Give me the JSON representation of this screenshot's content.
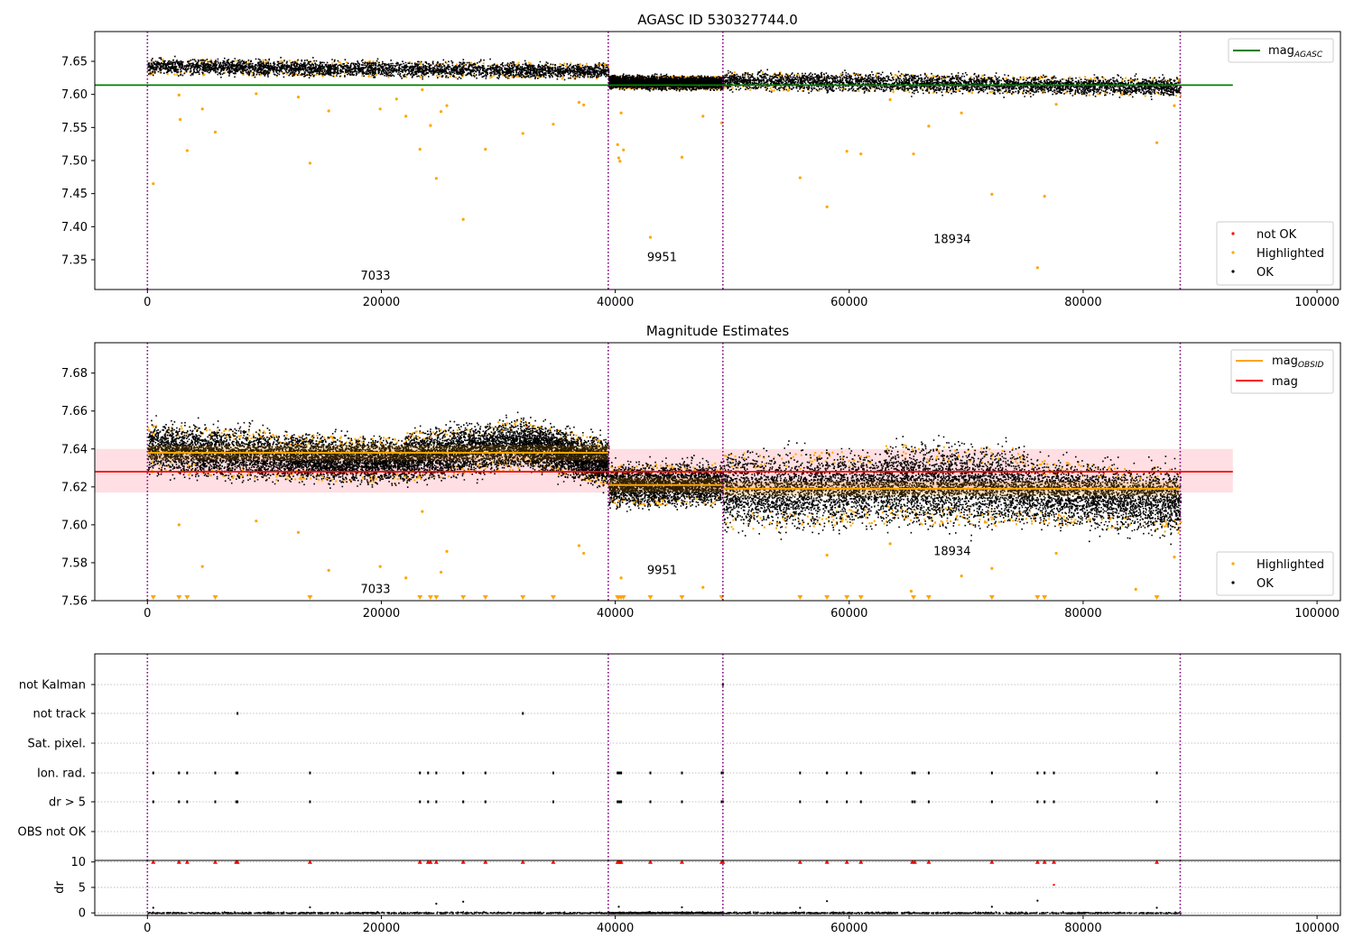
{
  "figure": {
    "title_top": "AGASC ID 530327744.0",
    "title_middle": "Magnitude Estimates"
  },
  "colors": {
    "ok": "#000000",
    "highlighted": "#ffa500",
    "not_ok": "#ff0000",
    "agasc_line": "#008000",
    "mag_line": "#ff0000",
    "mag_band": "#ffc0c8",
    "obsid_line": "#ffa500",
    "obs_boundary": "#800080",
    "grid": "#b0b0b0"
  },
  "chart_data": [
    {
      "id": "top",
      "type": "scatter",
      "title": "AGASC ID 530327744.0",
      "xlim": [
        -4500,
        102000
      ],
      "ylim": [
        7.305,
        7.695
      ],
      "x_ticks": [
        0,
        20000,
        40000,
        60000,
        80000,
        100000
      ],
      "y_ticks": [
        7.35,
        7.4,
        7.45,
        7.5,
        7.55,
        7.6,
        7.65
      ],
      "y_tick_labels": [
        "7.35",
        "7.40",
        "7.45",
        "7.50",
        "7.55",
        "7.60",
        "7.65"
      ],
      "obs_boundaries": [
        0,
        39400,
        49200,
        88300
      ],
      "obs_labels": [
        {
          "text": "7033",
          "x": 19500,
          "y": 7.32
        },
        {
          "text": "9951",
          "x": 44000,
          "y": 7.348
        },
        {
          "text": "18934",
          "x": 68800,
          "y": 7.375
        }
      ],
      "mag_agasc": 7.614,
      "mag_agasc_xrange": [
        -4500,
        92800
      ],
      "ok_segments": [
        {
          "x0": 0,
          "x1": 39400,
          "y0": 7.643,
          "y1": 7.636,
          "spread": 0.012
        },
        {
          "x0": 39400,
          "x1": 49200,
          "y0": 7.62,
          "y1": 7.618,
          "spread": 0.01
        },
        {
          "x0": 49200,
          "x1": 88300,
          "y0": 7.622,
          "y1": 7.612,
          "spread": 0.014
        }
      ],
      "highlighted_outliers": [
        [
          500,
          7.465
        ],
        [
          2700,
          7.599
        ],
        [
          2800,
          7.562
        ],
        [
          3400,
          7.515
        ],
        [
          4700,
          7.578
        ],
        [
          5800,
          7.543
        ],
        [
          9300,
          7.601
        ],
        [
          12900,
          7.596
        ],
        [
          13900,
          7.496
        ],
        [
          15500,
          7.575
        ],
        [
          19900,
          7.578
        ],
        [
          21300,
          7.593
        ],
        [
          22100,
          7.567
        ],
        [
          23300,
          7.517
        ],
        [
          23500,
          7.607
        ],
        [
          24200,
          7.553
        ],
        [
          24700,
          7.473
        ],
        [
          25100,
          7.574
        ],
        [
          25600,
          7.583
        ],
        [
          27000,
          7.411
        ],
        [
          28900,
          7.517
        ],
        [
          32100,
          7.541
        ],
        [
          34700,
          7.555
        ],
        [
          36900,
          7.588
        ],
        [
          37300,
          7.584
        ],
        [
          40200,
          7.524
        ],
        [
          40300,
          7.504
        ],
        [
          40400,
          7.499
        ],
        [
          40500,
          7.572
        ],
        [
          40700,
          7.516
        ],
        [
          43000,
          7.384
        ],
        [
          45700,
          7.505
        ],
        [
          47500,
          7.567
        ],
        [
          49100,
          7.557
        ],
        [
          55800,
          7.474
        ],
        [
          58100,
          7.43
        ],
        [
          59800,
          7.514
        ],
        [
          61000,
          7.51
        ],
        [
          65500,
          7.51
        ],
        [
          66800,
          7.552
        ],
        [
          72200,
          7.449
        ],
        [
          76100,
          7.338
        ],
        [
          76700,
          7.446
        ],
        [
          77700,
          7.585
        ],
        [
          86300,
          7.527
        ],
        [
          87800,
          7.583
        ],
        [
          63500,
          7.592
        ],
        [
          69600,
          7.572
        ]
      ],
      "legend": [
        "not OK",
        "Highlighted",
        "OK"
      ],
      "legend_line": "mag_AGASC"
    },
    {
      "id": "middle",
      "type": "scatter",
      "title": "Magnitude Estimates",
      "xlim": [
        -4500,
        102000
      ],
      "ylim": [
        7.56,
        7.696
      ],
      "x_ticks": [
        0,
        20000,
        40000,
        60000,
        80000,
        100000
      ],
      "y_ticks": [
        7.56,
        7.58,
        7.6,
        7.62,
        7.64,
        7.66,
        7.68
      ],
      "y_tick_labels": [
        "7.56",
        "7.58",
        "7.60",
        "7.62",
        "7.64",
        "7.66",
        "7.68"
      ],
      "obs_labels": [
        {
          "text": "7033",
          "x": 19500,
          "y": 7.564
        },
        {
          "text": "9951",
          "x": 44000,
          "y": 7.574
        },
        {
          "text": "18934",
          "x": 68800,
          "y": 7.584
        }
      ],
      "mag": 7.628,
      "mag_band": [
        7.617,
        7.64
      ],
      "mag_xrange": [
        -4500,
        92800
      ],
      "mag_obsid": [
        {
          "x0": 0,
          "x1": 39400,
          "y": 7.638
        },
        {
          "x0": 39400,
          "x1": 49200,
          "y": 7.621
        },
        {
          "x0": 49200,
          "x1": 88300,
          "y": 7.619
        }
      ],
      "ok_segments": [
        {
          "x0": 0,
          "x1": 12000,
          "y0": 7.641,
          "y1": 7.636,
          "spread": 0.013
        },
        {
          "x0": 12000,
          "x1": 22000,
          "y0": 7.636,
          "y1": 7.634,
          "spread": 0.012
        },
        {
          "x0": 22000,
          "x1": 32000,
          "y0": 7.636,
          "y1": 7.643,
          "spread": 0.013
        },
        {
          "x0": 32000,
          "x1": 39400,
          "y0": 7.643,
          "y1": 7.633,
          "spread": 0.012
        },
        {
          "x0": 39400,
          "x1": 49200,
          "y0": 7.621,
          "y1": 7.622,
          "spread": 0.011
        },
        {
          "x0": 49200,
          "x1": 63000,
          "y0": 7.618,
          "y1": 7.62,
          "spread": 0.02
        },
        {
          "x0": 63000,
          "x1": 75000,
          "y0": 7.622,
          "y1": 7.62,
          "spread": 0.021
        },
        {
          "x0": 75000,
          "x1": 88300,
          "y0": 7.618,
          "y1": 7.613,
          "spread": 0.017
        }
      ],
      "highlighted_outliers": [
        [
          2700,
          7.6
        ],
        [
          4700,
          7.578
        ],
        [
          9300,
          7.602
        ],
        [
          12900,
          7.596
        ],
        [
          15500,
          7.576
        ],
        [
          19900,
          7.578
        ],
        [
          22100,
          7.572
        ],
        [
          23500,
          7.607
        ],
        [
          25100,
          7.575
        ],
        [
          25600,
          7.586
        ],
        [
          36900,
          7.589
        ],
        [
          37300,
          7.585
        ],
        [
          40500,
          7.572
        ],
        [
          47500,
          7.567
        ],
        [
          58100,
          7.584
        ],
        [
          63500,
          7.59
        ],
        [
          69600,
          7.573
        ],
        [
          72200,
          7.577
        ],
        [
          77700,
          7.585
        ],
        [
          87800,
          7.583
        ],
        [
          84500,
          7.566
        ],
        [
          65300,
          7.565
        ]
      ],
      "clipped_low_x": [
        500,
        2700,
        3400,
        5800,
        13900,
        23300,
        24200,
        24700,
        27000,
        28900,
        32100,
        34700,
        40200,
        40300,
        40500,
        40700,
        43000,
        45700,
        49100,
        55800,
        58100,
        59800,
        61000,
        65500,
        66800,
        72200,
        76100,
        76700,
        86300
      ],
      "legend": [
        "Highlighted",
        "OK"
      ],
      "legend_lines": [
        "mag_OBSID",
        "mag"
      ]
    },
    {
      "id": "flags",
      "type": "scatter",
      "xlim": [
        -4500,
        102000
      ],
      "categories": [
        "not Kalman",
        "not track",
        "Sat. pixel.",
        "Ion. rad.",
        "dr > 5",
        "OBS not OK"
      ],
      "flags": {
        "not Kalman": [
          49200
        ],
        "not track": [
          7700,
          32100
        ],
        "Sat. pixel.": [],
        "Ion. rad.": [
          500,
          2700,
          3400,
          5800,
          7600,
          7700,
          13900,
          23300,
          24000,
          24700,
          27000,
          28900,
          34700,
          40200,
          40300,
          40400,
          40500,
          43000,
          45700,
          49100,
          49200,
          55800,
          58100,
          59800,
          61000,
          65400,
          65600,
          66800,
          72200,
          76100,
          76700,
          77500,
          86300
        ],
        "dr > 5": [
          500,
          2700,
          3400,
          5800,
          7600,
          7700,
          13900,
          23300,
          24000,
          24700,
          27000,
          28900,
          34700,
          40200,
          40300,
          40400,
          40500,
          43000,
          45700,
          49100,
          49200,
          55800,
          58100,
          59800,
          61000,
          65400,
          65600,
          66800,
          72200,
          76100,
          76700,
          77500,
          86300
        ],
        "OBS not OK": []
      }
    },
    {
      "id": "dr",
      "type": "scatter",
      "ylabel": "dr",
      "xlim": [
        -4500,
        102000
      ],
      "ylim": [
        -0.5,
        10.3
      ],
      "x_ticks": [
        0,
        20000,
        40000,
        60000,
        80000,
        100000
      ],
      "x_tick_labels": [
        "0",
        "20000",
        "40000",
        "60000",
        "80000",
        "100000"
      ],
      "y_ticks": [
        0,
        5,
        10
      ],
      "y_tick_labels": [
        "0",
        "5",
        "10"
      ],
      "clipped_high_x": [
        500,
        2700,
        3400,
        5800,
        7600,
        7700,
        13900,
        23300,
        24000,
        24200,
        24700,
        27000,
        28900,
        32100,
        34700,
        40200,
        40300,
        40400,
        40500,
        43000,
        45700,
        49100,
        49200,
        55800,
        58100,
        59800,
        61000,
        65400,
        65600,
        66800,
        72200,
        76100,
        76700,
        77500,
        86300
      ],
      "not_ok_points": [
        [
          77500,
          5.5
        ]
      ],
      "ok_points": [
        [
          500,
          1.0
        ],
        [
          13900,
          1.1
        ],
        [
          24700,
          1.8
        ],
        [
          27000,
          2.2
        ],
        [
          40300,
          1.2
        ],
        [
          45700,
          1.1
        ],
        [
          55800,
          1.0
        ],
        [
          58100,
          2.3
        ],
        [
          72200,
          1.2
        ],
        [
          76100,
          2.4
        ],
        [
          86300,
          1.0
        ]
      ]
    }
  ]
}
